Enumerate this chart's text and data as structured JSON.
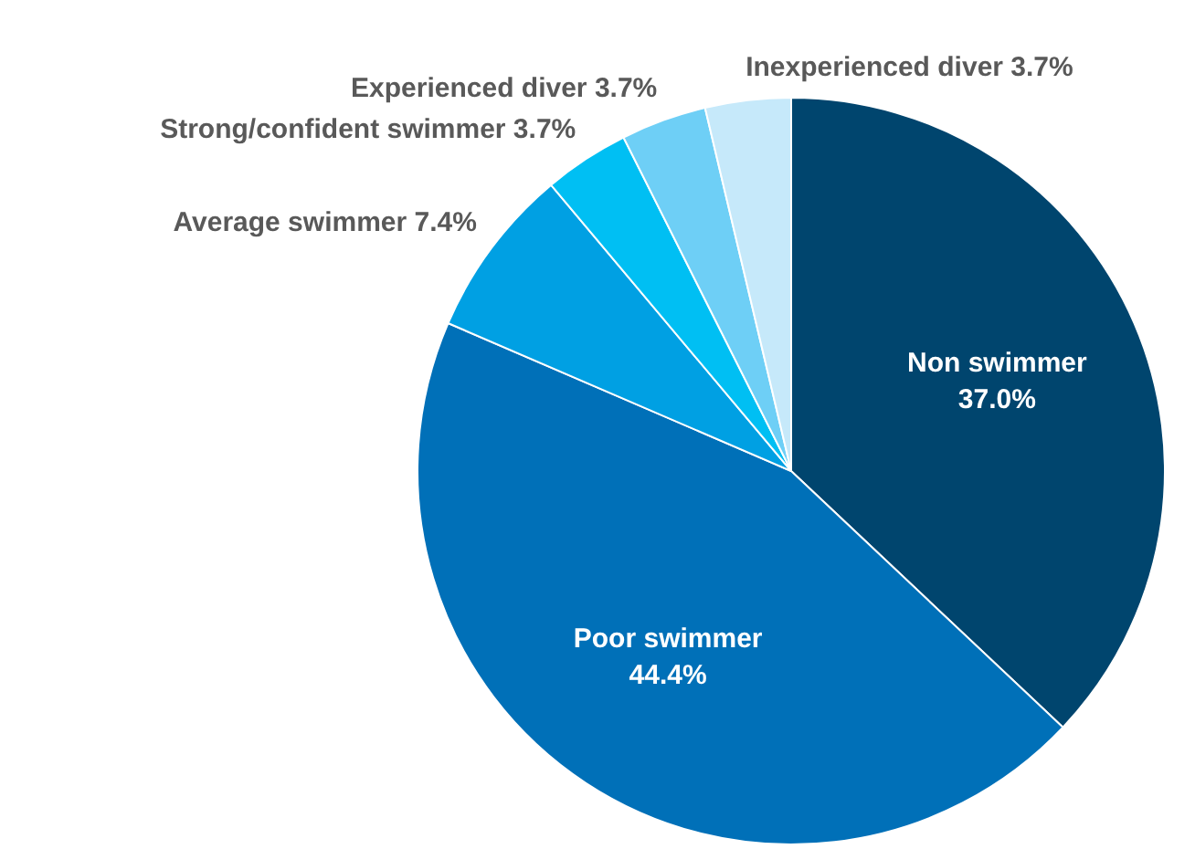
{
  "chart_data": {
    "type": "pie",
    "categories": [
      "Non swimmer",
      "Poor swimmer",
      "Average swimmer",
      "Strong/confident swimmer",
      "Experienced diver",
      "Inexperienced diver"
    ],
    "values": [
      37.0,
      44.4,
      7.4,
      3.7,
      3.7,
      3.7
    ],
    "value_labels": [
      "37.0%",
      "44.4%",
      "7.4%",
      "3.7%",
      "3.7%",
      "3.7%"
    ],
    "colors": [
      "#00456e",
      "#0070b8",
      "#00a0e3",
      "#00bff3",
      "#6ecff6",
      "#c6e9fa"
    ],
    "legend": false
  }
}
